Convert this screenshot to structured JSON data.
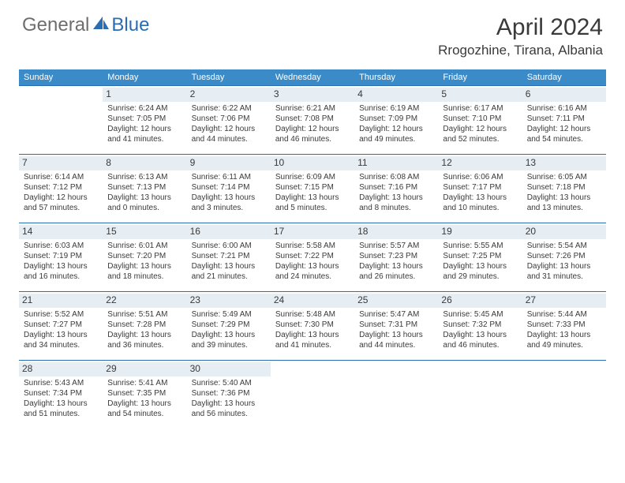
{
  "brand": {
    "part1": "General",
    "part2": "Blue"
  },
  "title": "April 2024",
  "location": "Rrogozhine, Tirana, Albania",
  "colors": {
    "header_bg": "#3b8bc8",
    "daynum_bg": "#e6edf3",
    "rule": "#2a6db3",
    "text": "#3a3a3a",
    "logo_gray": "#6e6e6e",
    "logo_blue": "#2a6db3"
  },
  "day_labels": [
    "Sunday",
    "Monday",
    "Tuesday",
    "Wednesday",
    "Thursday",
    "Friday",
    "Saturday"
  ],
  "weeks": [
    [
      {
        "n": "",
        "sr": "",
        "ss": "",
        "dl1": "",
        "dl2": ""
      },
      {
        "n": "1",
        "sr": "Sunrise: 6:24 AM",
        "ss": "Sunset: 7:05 PM",
        "dl1": "Daylight: 12 hours",
        "dl2": "and 41 minutes."
      },
      {
        "n": "2",
        "sr": "Sunrise: 6:22 AM",
        "ss": "Sunset: 7:06 PM",
        "dl1": "Daylight: 12 hours",
        "dl2": "and 44 minutes."
      },
      {
        "n": "3",
        "sr": "Sunrise: 6:21 AM",
        "ss": "Sunset: 7:08 PM",
        "dl1": "Daylight: 12 hours",
        "dl2": "and 46 minutes."
      },
      {
        "n": "4",
        "sr": "Sunrise: 6:19 AM",
        "ss": "Sunset: 7:09 PM",
        "dl1": "Daylight: 12 hours",
        "dl2": "and 49 minutes."
      },
      {
        "n": "5",
        "sr": "Sunrise: 6:17 AM",
        "ss": "Sunset: 7:10 PM",
        "dl1": "Daylight: 12 hours",
        "dl2": "and 52 minutes."
      },
      {
        "n": "6",
        "sr": "Sunrise: 6:16 AM",
        "ss": "Sunset: 7:11 PM",
        "dl1": "Daylight: 12 hours",
        "dl2": "and 54 minutes."
      }
    ],
    [
      {
        "n": "7",
        "sr": "Sunrise: 6:14 AM",
        "ss": "Sunset: 7:12 PM",
        "dl1": "Daylight: 12 hours",
        "dl2": "and 57 minutes."
      },
      {
        "n": "8",
        "sr": "Sunrise: 6:13 AM",
        "ss": "Sunset: 7:13 PM",
        "dl1": "Daylight: 13 hours",
        "dl2": "and 0 minutes."
      },
      {
        "n": "9",
        "sr": "Sunrise: 6:11 AM",
        "ss": "Sunset: 7:14 PM",
        "dl1": "Daylight: 13 hours",
        "dl2": "and 3 minutes."
      },
      {
        "n": "10",
        "sr": "Sunrise: 6:09 AM",
        "ss": "Sunset: 7:15 PM",
        "dl1": "Daylight: 13 hours",
        "dl2": "and 5 minutes."
      },
      {
        "n": "11",
        "sr": "Sunrise: 6:08 AM",
        "ss": "Sunset: 7:16 PM",
        "dl1": "Daylight: 13 hours",
        "dl2": "and 8 minutes."
      },
      {
        "n": "12",
        "sr": "Sunrise: 6:06 AM",
        "ss": "Sunset: 7:17 PM",
        "dl1": "Daylight: 13 hours",
        "dl2": "and 10 minutes."
      },
      {
        "n": "13",
        "sr": "Sunrise: 6:05 AM",
        "ss": "Sunset: 7:18 PM",
        "dl1": "Daylight: 13 hours",
        "dl2": "and 13 minutes."
      }
    ],
    [
      {
        "n": "14",
        "sr": "Sunrise: 6:03 AM",
        "ss": "Sunset: 7:19 PM",
        "dl1": "Daylight: 13 hours",
        "dl2": "and 16 minutes."
      },
      {
        "n": "15",
        "sr": "Sunrise: 6:01 AM",
        "ss": "Sunset: 7:20 PM",
        "dl1": "Daylight: 13 hours",
        "dl2": "and 18 minutes."
      },
      {
        "n": "16",
        "sr": "Sunrise: 6:00 AM",
        "ss": "Sunset: 7:21 PM",
        "dl1": "Daylight: 13 hours",
        "dl2": "and 21 minutes."
      },
      {
        "n": "17",
        "sr": "Sunrise: 5:58 AM",
        "ss": "Sunset: 7:22 PM",
        "dl1": "Daylight: 13 hours",
        "dl2": "and 24 minutes."
      },
      {
        "n": "18",
        "sr": "Sunrise: 5:57 AM",
        "ss": "Sunset: 7:23 PM",
        "dl1": "Daylight: 13 hours",
        "dl2": "and 26 minutes."
      },
      {
        "n": "19",
        "sr": "Sunrise: 5:55 AM",
        "ss": "Sunset: 7:25 PM",
        "dl1": "Daylight: 13 hours",
        "dl2": "and 29 minutes."
      },
      {
        "n": "20",
        "sr": "Sunrise: 5:54 AM",
        "ss": "Sunset: 7:26 PM",
        "dl1": "Daylight: 13 hours",
        "dl2": "and 31 minutes."
      }
    ],
    [
      {
        "n": "21",
        "sr": "Sunrise: 5:52 AM",
        "ss": "Sunset: 7:27 PM",
        "dl1": "Daylight: 13 hours",
        "dl2": "and 34 minutes."
      },
      {
        "n": "22",
        "sr": "Sunrise: 5:51 AM",
        "ss": "Sunset: 7:28 PM",
        "dl1": "Daylight: 13 hours",
        "dl2": "and 36 minutes."
      },
      {
        "n": "23",
        "sr": "Sunrise: 5:49 AM",
        "ss": "Sunset: 7:29 PM",
        "dl1": "Daylight: 13 hours",
        "dl2": "and 39 minutes."
      },
      {
        "n": "24",
        "sr": "Sunrise: 5:48 AM",
        "ss": "Sunset: 7:30 PM",
        "dl1": "Daylight: 13 hours",
        "dl2": "and 41 minutes."
      },
      {
        "n": "25",
        "sr": "Sunrise: 5:47 AM",
        "ss": "Sunset: 7:31 PM",
        "dl1": "Daylight: 13 hours",
        "dl2": "and 44 minutes."
      },
      {
        "n": "26",
        "sr": "Sunrise: 5:45 AM",
        "ss": "Sunset: 7:32 PM",
        "dl1": "Daylight: 13 hours",
        "dl2": "and 46 minutes."
      },
      {
        "n": "27",
        "sr": "Sunrise: 5:44 AM",
        "ss": "Sunset: 7:33 PM",
        "dl1": "Daylight: 13 hours",
        "dl2": "and 49 minutes."
      }
    ],
    [
      {
        "n": "28",
        "sr": "Sunrise: 5:43 AM",
        "ss": "Sunset: 7:34 PM",
        "dl1": "Daylight: 13 hours",
        "dl2": "and 51 minutes."
      },
      {
        "n": "29",
        "sr": "Sunrise: 5:41 AM",
        "ss": "Sunset: 7:35 PM",
        "dl1": "Daylight: 13 hours",
        "dl2": "and 54 minutes."
      },
      {
        "n": "30",
        "sr": "Sunrise: 5:40 AM",
        "ss": "Sunset: 7:36 PM",
        "dl1": "Daylight: 13 hours",
        "dl2": "and 56 minutes."
      },
      {
        "n": "",
        "sr": "",
        "ss": "",
        "dl1": "",
        "dl2": ""
      },
      {
        "n": "",
        "sr": "",
        "ss": "",
        "dl1": "",
        "dl2": ""
      },
      {
        "n": "",
        "sr": "",
        "ss": "",
        "dl1": "",
        "dl2": ""
      },
      {
        "n": "",
        "sr": "",
        "ss": "",
        "dl1": "",
        "dl2": ""
      }
    ]
  ]
}
